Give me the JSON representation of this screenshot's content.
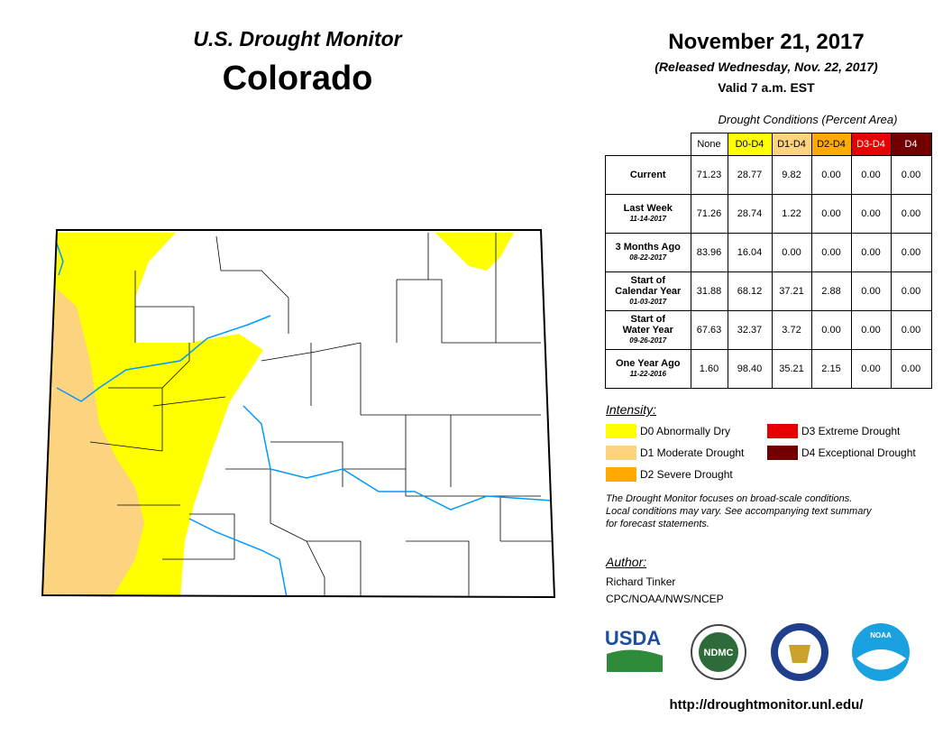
{
  "header": {
    "title": "U.S. Drought Monitor",
    "state": "Colorado",
    "date": "November 21, 2017",
    "released": "(Released Wednesday, Nov. 22, 2017)",
    "valid": "Valid 7 a.m. EST"
  },
  "table": {
    "caption": "Drought Conditions (Percent Area)",
    "columns": [
      {
        "label": "None",
        "color": "#ffffff",
        "text_color": "#000000"
      },
      {
        "label": "D0-D4",
        "color": "#ffff00",
        "text_color": "#000000"
      },
      {
        "label": "D1-D4",
        "color": "#fcd37f",
        "text_color": "#000000"
      },
      {
        "label": "D2-D4",
        "color": "#ffaa00",
        "text_color": "#000000"
      },
      {
        "label": "D3-D4",
        "color": "#e60000",
        "text_color": "#ffffff"
      },
      {
        "label": "D4",
        "color": "#730000",
        "text_color": "#ffffff"
      }
    ],
    "rows": [
      {
        "lines": [
          "Current"
        ],
        "cells": [
          "71.23",
          "28.77",
          "9.82",
          "0.00",
          "0.00",
          "0.00"
        ]
      },
      {
        "lines": [
          "Last Week"
        ],
        "date": "11-14-2017",
        "cells": [
          "71.26",
          "28.74",
          "1.22",
          "0.00",
          "0.00",
          "0.00"
        ]
      },
      {
        "lines": [
          "3 Months Ago"
        ],
        "date": "08-22-2017",
        "cells": [
          "83.96",
          "16.04",
          "0.00",
          "0.00",
          "0.00",
          "0.00"
        ]
      },
      {
        "lines": [
          "Start of",
          "Calendar Year"
        ],
        "date": "01-03-2017",
        "cells": [
          "31.88",
          "68.12",
          "37.21",
          "2.88",
          "0.00",
          "0.00"
        ]
      },
      {
        "lines": [
          "Start of",
          "Water Year"
        ],
        "date": "09-26-2017",
        "cells": [
          "67.63",
          "32.37",
          "3.72",
          "0.00",
          "0.00",
          "0.00"
        ]
      },
      {
        "lines": [
          "One Year Ago"
        ],
        "date": "11-22-2016",
        "cells": [
          "1.60",
          "98.40",
          "35.21",
          "2.15",
          "0.00",
          "0.00"
        ]
      }
    ]
  },
  "legend": {
    "title": "Intensity:",
    "items": [
      {
        "label": "D0 Abnormally Dry",
        "color": "#ffff00"
      },
      {
        "label": "D1 Moderate Drought",
        "color": "#fcd37f"
      },
      {
        "label": "D2 Severe Drought",
        "color": "#ffaa00"
      },
      {
        "label": "D3 Extreme Drought",
        "color": "#e60000"
      },
      {
        "label": "D4 Exceptional Drought",
        "color": "#730000"
      }
    ]
  },
  "note": [
    "The Drought Monitor focuses on broad-scale conditions.",
    "Local conditions may vary. See accompanying text summary",
    "for forecast statements."
  ],
  "author": {
    "title": "Author:",
    "name": "Richard Tinker",
    "org": "CPC/NOAA/NWS/NCEP"
  },
  "logos": [
    "USDA",
    "NDMC",
    "NOAA"
  ],
  "url": "http://droughtmonitor.unl.edu/"
}
